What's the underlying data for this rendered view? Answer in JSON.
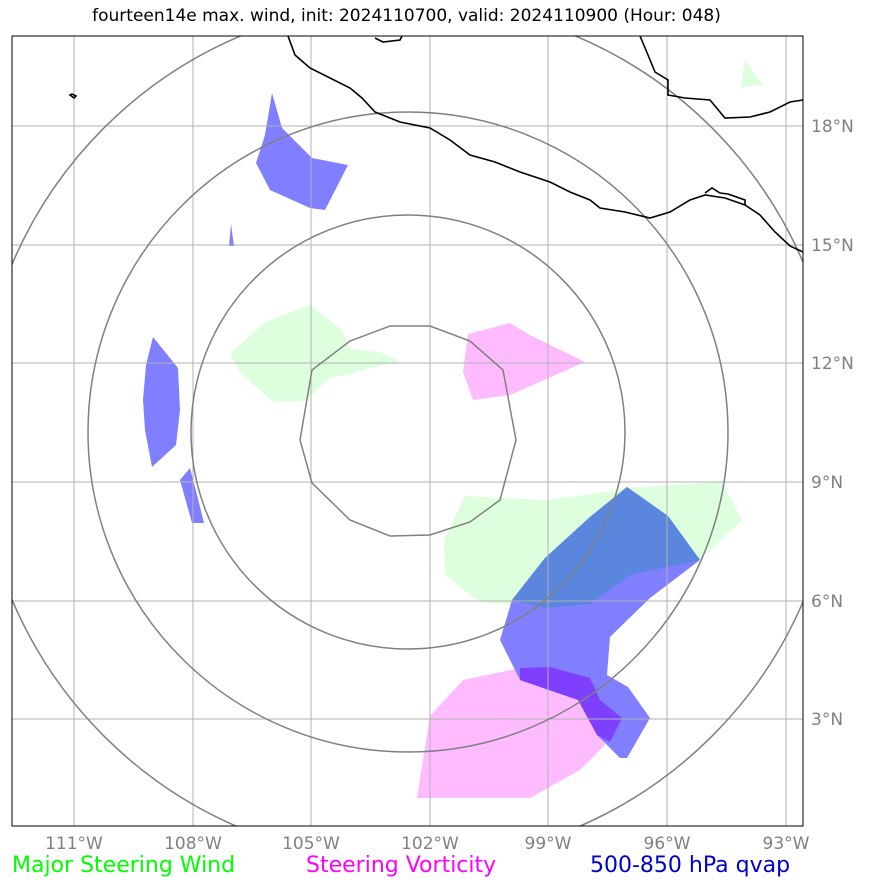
{
  "title": "fourteen14e max. wind, init: 2024110700, valid: 2024110900 (Hour: 048)",
  "lat_ticks": [
    "18°N",
    "15°N",
    "12°N",
    "9°N",
    "6°N",
    "3°N"
  ],
  "lon_ticks": [
    "111°W",
    "108°W",
    "105°W",
    "102°W",
    "99°W",
    "96°W",
    "93°W"
  ],
  "legend": {
    "wind": "Major Steering Wind",
    "vorticity": "Steering Vorticity",
    "qvap": "500-850 hPa qvap"
  },
  "colors": {
    "wind": "#00ff00",
    "vorticity": "#ff00ff",
    "qvap": "#0000cc",
    "wind_fill": "#ddffdd",
    "vort_fill": "#ffbbff",
    "qvap_fill": "#7f7fff",
    "overlap_fill": "#5a86dd",
    "qvap_vort_fill": "#7f3fff"
  }
}
